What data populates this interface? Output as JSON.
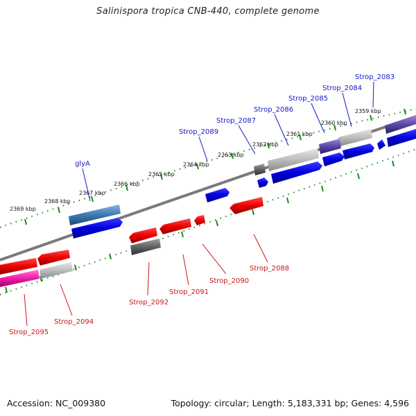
{
  "title": "Salinispora tropica CNB-440, complete genome",
  "footer": {
    "accession": "Accession: NC_009380",
    "summary": "Topology: circular; Length: 5,183,331 bp; Genes: 4,596"
  },
  "scale_labels": [
    "2359 kbp",
    "2360 kbp",
    "2361 kbp",
    "2362 kbp",
    "2363 kbp",
    "2364 kbp",
    "2365 kbp",
    "2366 kbp",
    "2367 kbp",
    "2368 kbp",
    "2369 kbp"
  ],
  "gene_labels_top": [
    "Strop_2083",
    "Strop_2084",
    "Strop_2085",
    "Strop_2086",
    "Strop_2087",
    "Strop_2089",
    "glyA"
  ],
  "gene_labels_bottom": [
    "Strop_2088",
    "Strop_2090",
    "Strop_2091",
    "Strop_2092",
    "Strop_2094",
    "Strop_2095"
  ],
  "colors": {
    "forward_cds": "#1010e8",
    "reverse_cds": "#e81010",
    "backbone": "#808080",
    "tick": "#1a8a1a",
    "label_top": "#1515c8",
    "label_bottom": "#c81515"
  }
}
